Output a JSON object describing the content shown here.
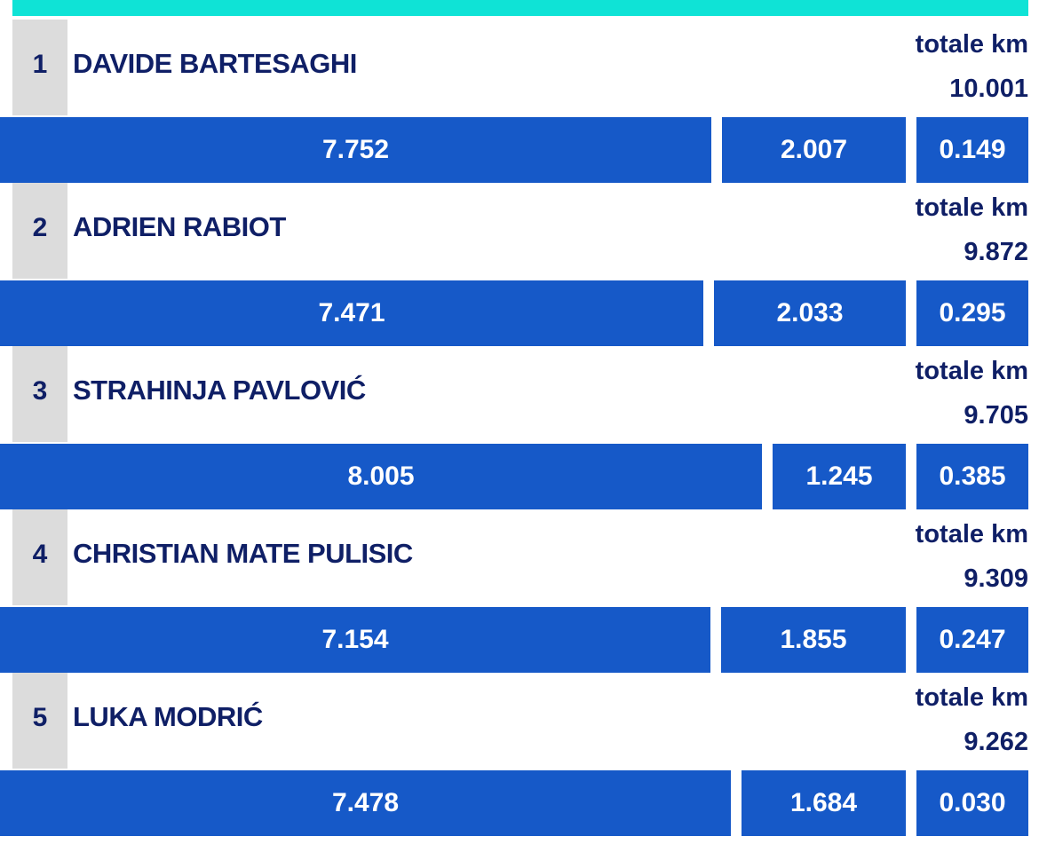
{
  "chart_data": {
    "type": "bar",
    "stacked": true,
    "orientation": "horizontal",
    "total_label": "totale km",
    "players": [
      {
        "rank": "1",
        "name": "DAVIDE BARTESAGHI",
        "total": "10.001",
        "segments": [
          7.752,
          2.007,
          0.149
        ],
        "segment_labels": [
          "7.752",
          "2.007",
          "0.149"
        ]
      },
      {
        "rank": "2",
        "name": "ADRIEN RABIOT",
        "total": "9.872",
        "segments": [
          7.471,
          2.033,
          0.295
        ],
        "segment_labels": [
          "7.471",
          "2.033",
          "0.295"
        ]
      },
      {
        "rank": "3",
        "name": "STRAHINJA PAVLOVIĆ",
        "total": "9.705",
        "segments": [
          8.005,
          1.245,
          0.385
        ],
        "segment_labels": [
          "8.005",
          "1.245",
          "0.385"
        ]
      },
      {
        "rank": "4",
        "name": "CHRISTIAN MATE PULISIC",
        "total": "9.309",
        "segments": [
          7.154,
          1.855,
          0.247
        ],
        "segment_labels": [
          "7.154",
          "1.855",
          "0.247"
        ]
      },
      {
        "rank": "5",
        "name": "LUKA MODRIĆ",
        "total": "9.262",
        "segments": [
          7.478,
          1.684,
          0.03
        ],
        "segment_labels": [
          "7.478",
          "1.684",
          "0.030"
        ]
      }
    ]
  },
  "colors": {
    "accent_bar": "#0fe3d6",
    "bar_fill": "#1659c8",
    "text_dark": "#0f1f66",
    "rank_bg": "#dcdcdc"
  }
}
